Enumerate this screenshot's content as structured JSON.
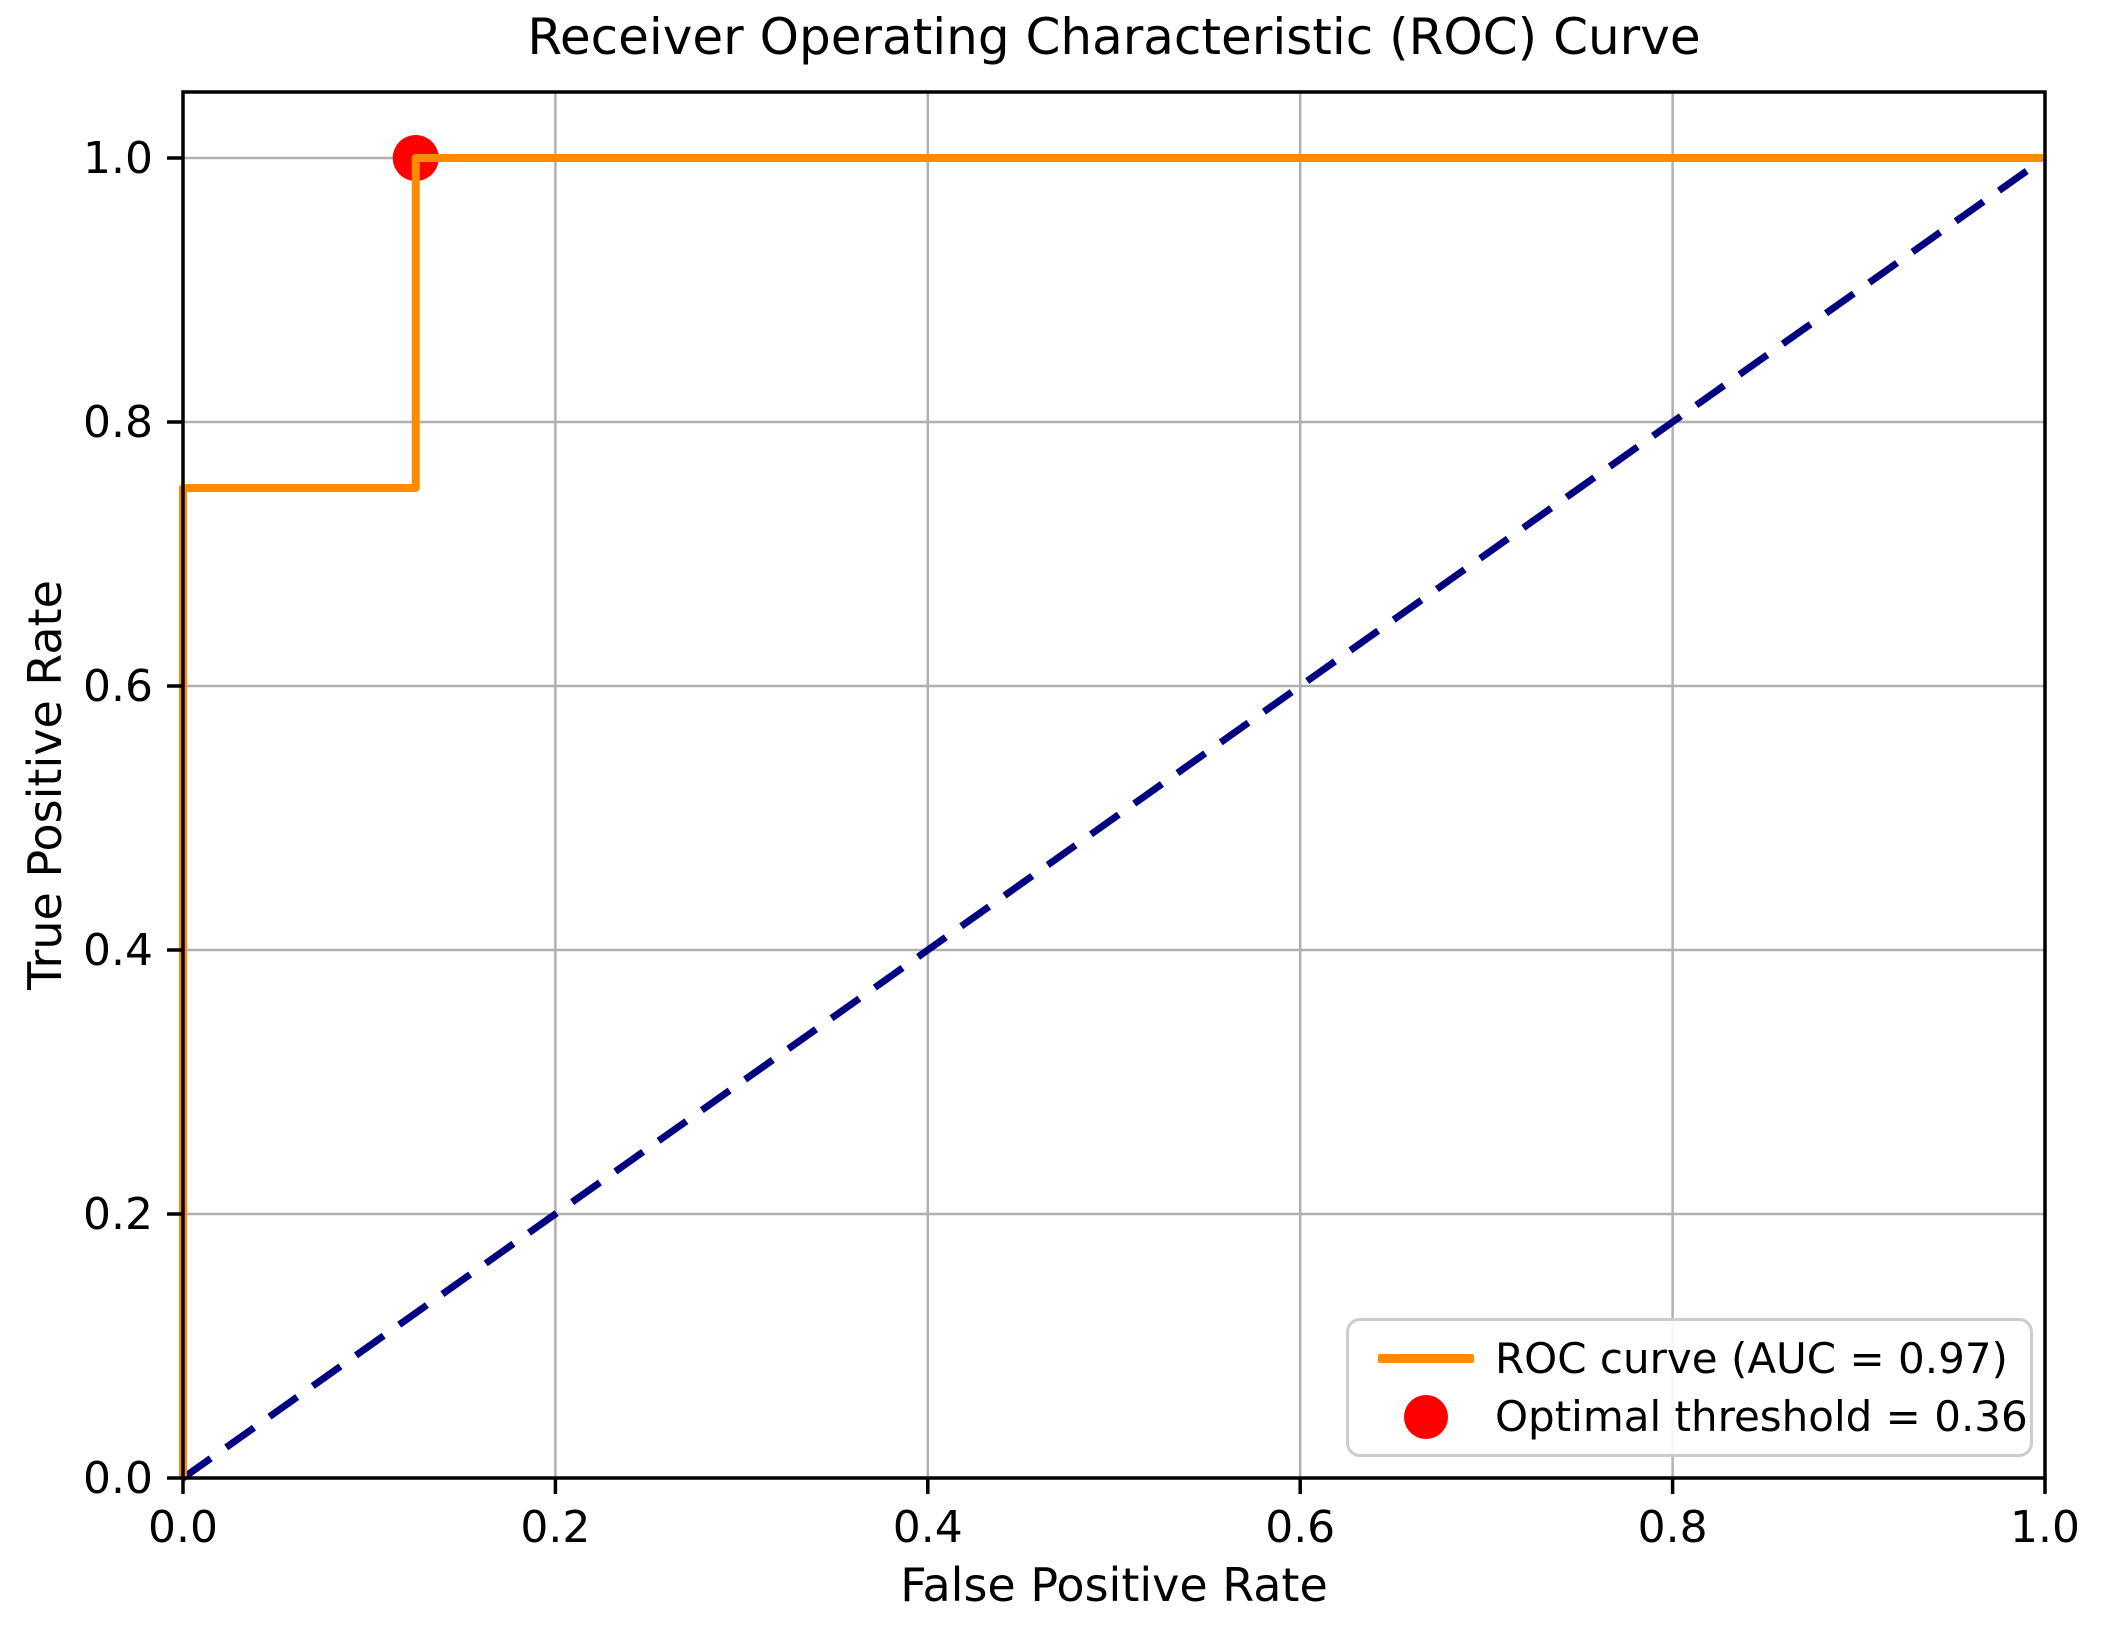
{
  "chart_data": {
    "type": "line",
    "title": "Receiver Operating Characteristic (ROC) Curve",
    "xlabel": "False Positive Rate",
    "ylabel": "True Positive Rate",
    "xlim": [
      0.0,
      1.0
    ],
    "ylim": [
      0.0,
      1.05
    ],
    "grid": true,
    "legend_position": "lower right",
    "x_ticks": [
      0.0,
      0.2,
      0.4,
      0.6,
      0.8,
      1.0
    ],
    "y_ticks": [
      0.0,
      0.2,
      0.4,
      0.6,
      0.8,
      1.0
    ],
    "x_tick_labels": [
      "0.0",
      "0.2",
      "0.4",
      "0.6",
      "0.8",
      "1.0"
    ],
    "y_tick_labels": [
      "0.0",
      "0.2",
      "0.4",
      "0.6",
      "0.8",
      "1.0"
    ],
    "auc": 0.97,
    "optimal_threshold": 0.36,
    "optimal_point": {
      "fpr": 0.125,
      "tpr": 1.0
    },
    "colors": {
      "roc_curve": "#FF8C00",
      "chance_diagonal": "#000080",
      "optimal_point": "#FF0000",
      "grid": "#B0B0B0",
      "spine": "#000000",
      "legend_border": "#CCCCCC"
    },
    "series": [
      {
        "name": "Optimal threshold marker",
        "style": "marker",
        "color": "#FF0000",
        "points": [
          [
            0.125,
            1.0
          ]
        ]
      },
      {
        "name": "Chance diagonal",
        "style": "dashed",
        "color": "#000080",
        "points": [
          [
            0.0,
            0.0
          ],
          [
            1.0,
            1.0
          ]
        ]
      },
      {
        "name": "ROC curve",
        "style": "solid",
        "color": "#FF8C00",
        "points": [
          [
            0.0,
            0.0
          ],
          [
            0.0,
            0.75
          ],
          [
            0.125,
            0.75
          ],
          [
            0.125,
            1.0
          ],
          [
            1.0,
            1.0
          ]
        ]
      }
    ],
    "legend": [
      {
        "label": "ROC curve (AUC = 0.97)",
        "marker": "line",
        "color": "#FF8C00"
      },
      {
        "label": "Optimal threshold = 0.36",
        "marker": "dot",
        "color": "#FF0000"
      }
    ]
  }
}
